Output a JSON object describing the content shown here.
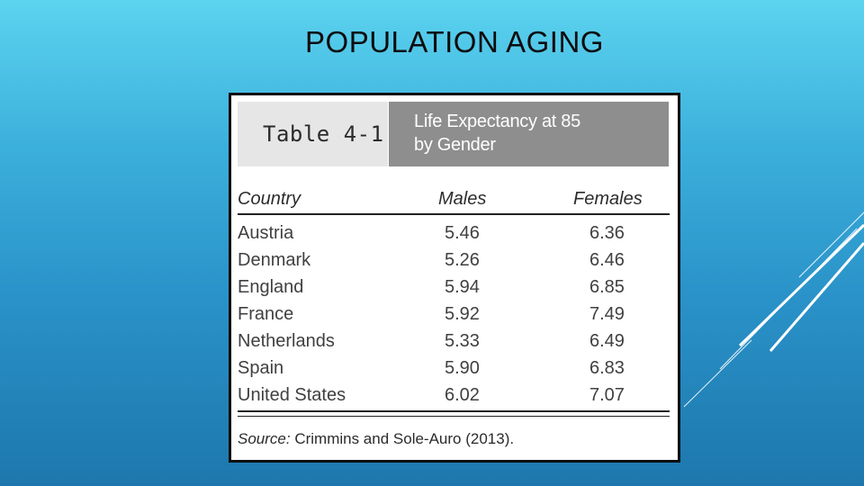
{
  "slide": {
    "title": "POPULATION AGING"
  },
  "table": {
    "number": "Table 4-1",
    "caption_line1": "Life Expectancy at 85",
    "caption_line2": "by Gender",
    "columns": [
      "Country",
      "Males",
      "Females"
    ],
    "rows": [
      {
        "country": "Austria",
        "males": "5.46",
        "females": "6.36"
      },
      {
        "country": "Denmark",
        "males": "5.26",
        "females": "6.46"
      },
      {
        "country": "England",
        "males": "5.94",
        "females": "6.85"
      },
      {
        "country": "France",
        "males": "5.92",
        "females": "7.49"
      },
      {
        "country": "Netherlands",
        "males": "5.33",
        "females": "6.49"
      },
      {
        "country": "Spain",
        "males": "5.90",
        "females": "6.83"
      },
      {
        "country": "United States",
        "males": "6.02",
        "females": "7.07"
      }
    ],
    "source_label": "Source:",
    "source_text": " Crimmins and Sole-Auro (2013)."
  },
  "colors": {
    "background_top": "#5cd3ef",
    "background_bottom": "#1d77ad",
    "header_gray": "#8e8e8e",
    "header_light": "#e6e6e6"
  }
}
